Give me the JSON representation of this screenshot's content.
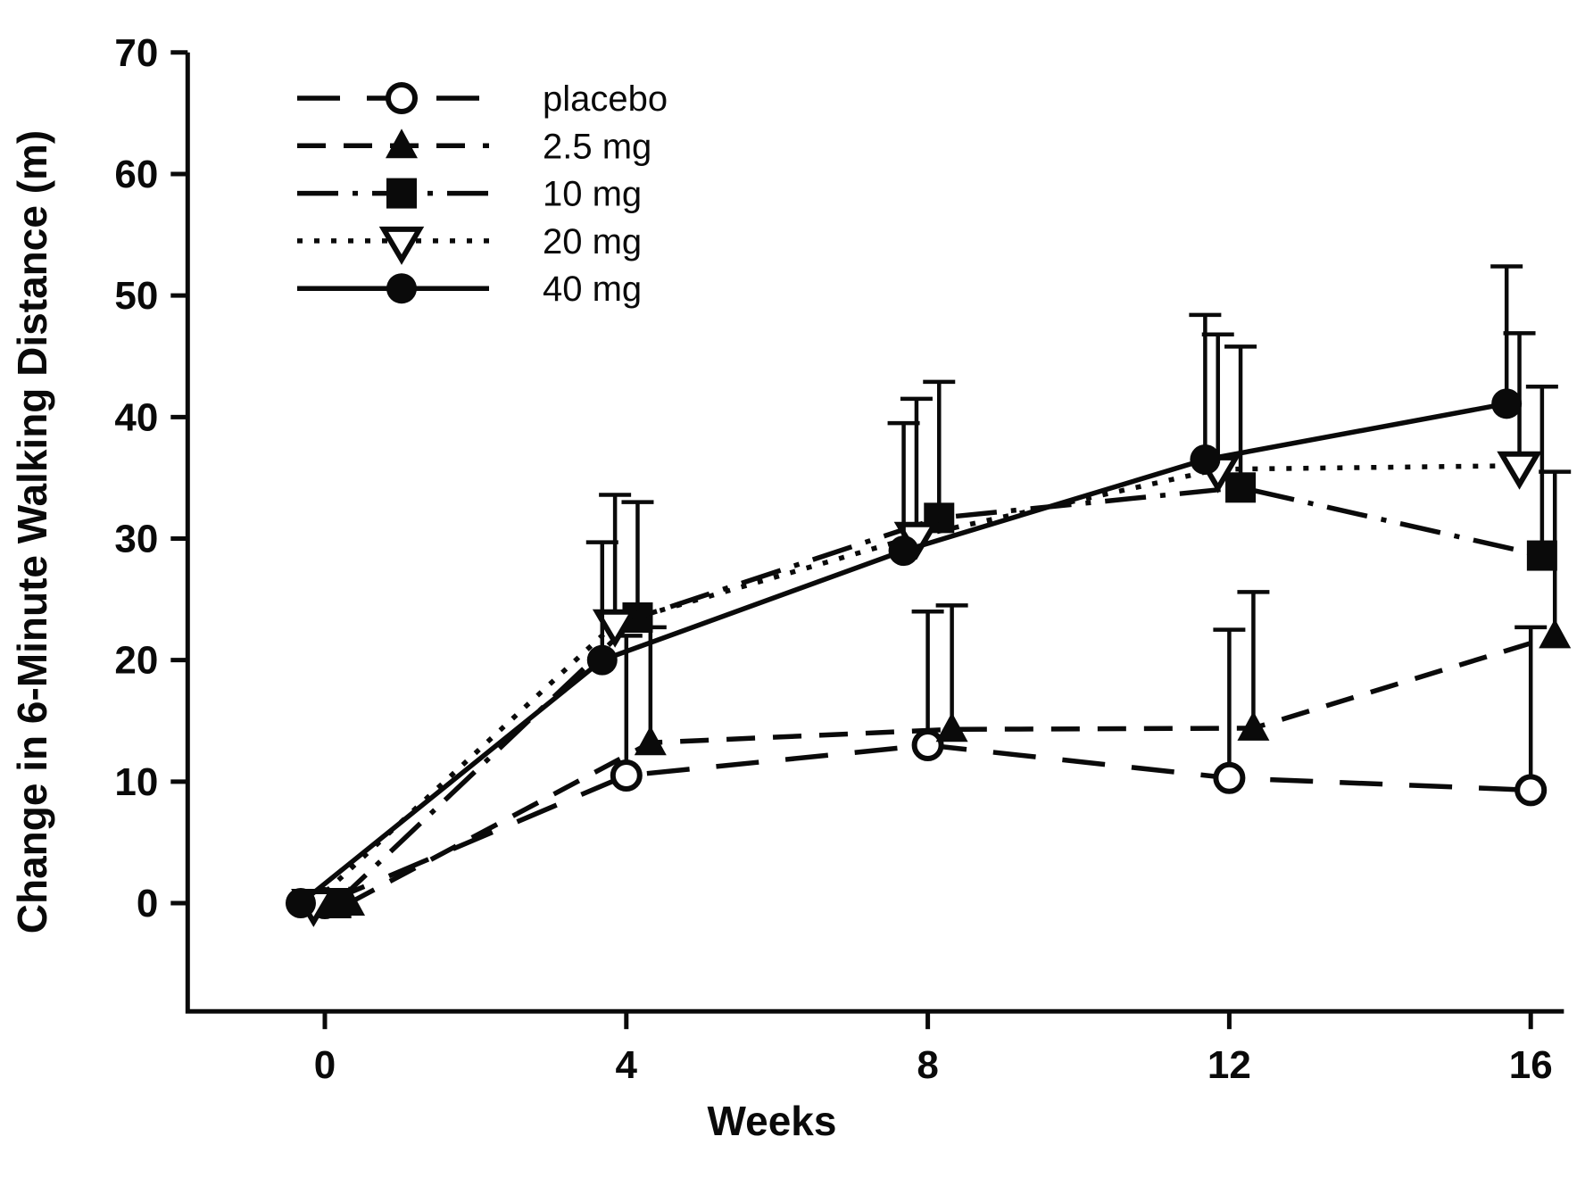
{
  "figure": {
    "background": "#ffffff",
    "ink_color": "#0a0a0a"
  },
  "chart_data": {
    "type": "line",
    "title": "",
    "xlabel": "Weeks",
    "ylabel": "Change in 6-Minute Walking Distance (m)",
    "x": [
      0,
      4,
      8,
      12,
      16
    ],
    "xticks": [
      0,
      4,
      8,
      12,
      16
    ],
    "yticks": [
      0,
      10,
      20,
      30,
      40,
      50,
      60,
      70
    ],
    "xlim": [
      -1.82,
      16.44
    ],
    "ylim": [
      -8.9,
      70
    ],
    "grid": false,
    "legend_position": "upper-left-inside",
    "error_bars": "upper-only",
    "series": [
      {
        "name": "placebo",
        "marker": "circle-open",
        "line": "long-dash",
        "x_offset": 0,
        "values": [
          0,
          10.5,
          13,
          10.3,
          9.3
        ],
        "err_up": [
          0,
          11.5,
          11,
          12.2,
          13.4
        ]
      },
      {
        "name": "2.5 mg",
        "marker": "triangle-up-filled",
        "line": "dash",
        "x_offset": 0.32,
        "values": [
          0,
          13.2,
          14.3,
          14.4,
          22
        ],
        "err_up": [
          0,
          9.5,
          10.2,
          11.2,
          13.5
        ]
      },
      {
        "name": "10 mg",
        "marker": "square-filled",
        "line": "dash-dot",
        "x_offset": 0.15,
        "values": [
          0,
          23.5,
          31.7,
          34.2,
          28.6
        ],
        "err_up": [
          0,
          9.5,
          11.2,
          11.6,
          13.9
        ]
      },
      {
        "name": "20 mg",
        "marker": "triangle-down-open",
        "line": "dotted",
        "x_offset": -0.15,
        "values": [
          0,
          23,
          30.2,
          35.7,
          36
        ],
        "err_up": [
          0,
          10.6,
          11.3,
          11.1,
          10.9
        ]
      },
      {
        "name": "40 mg",
        "marker": "circle-filled",
        "line": "solid",
        "x_offset": -0.32,
        "values": [
          0,
          20,
          29,
          36.5,
          41.1
        ],
        "err_up": [
          0,
          9.7,
          10.5,
          11.9,
          11.3
        ]
      }
    ]
  }
}
